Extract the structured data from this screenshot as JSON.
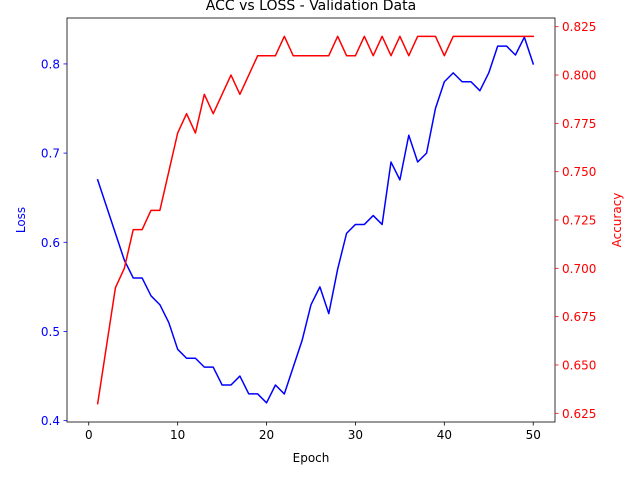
{
  "chart_data": {
    "type": "line",
    "title": "ACC vs LOSS - Validation Data",
    "xlabel": "Epoch",
    "ylabel_left": "Loss",
    "ylabel_right": "Accuracy",
    "xlim": [
      -2.45,
      52.45
    ],
    "ylim_left": [
      0.3985,
      0.8515
    ],
    "ylim_right": [
      0.6205,
      0.8295
    ],
    "x_ticks": [
      0,
      10,
      20,
      30,
      40,
      50
    ],
    "y_left_ticks": [
      0.4,
      0.5,
      0.6,
      0.7,
      0.8
    ],
    "y_right_ticks": [
      0.625,
      0.65,
      0.675,
      0.7,
      0.725,
      0.75,
      0.775,
      0.8,
      0.825
    ],
    "grid": false,
    "x": [
      1,
      2,
      3,
      4,
      5,
      6,
      7,
      8,
      9,
      10,
      11,
      12,
      13,
      14,
      15,
      16,
      17,
      18,
      19,
      20,
      21,
      22,
      23,
      24,
      25,
      26,
      27,
      28,
      29,
      30,
      31,
      32,
      33,
      34,
      35,
      36,
      37,
      38,
      39,
      40,
      41,
      42,
      43,
      44,
      45,
      46,
      47,
      48,
      49,
      50
    ],
    "series": [
      {
        "axis": "left",
        "color": "#0000ff",
        "values": [
          0.67,
          0.64,
          0.61,
          0.58,
          0.56,
          0.56,
          0.54,
          0.53,
          0.51,
          0.48,
          0.47,
          0.47,
          0.46,
          0.46,
          0.44,
          0.44,
          0.45,
          0.43,
          0.43,
          0.42,
          0.44,
          0.43,
          0.46,
          0.49,
          0.53,
          0.55,
          0.52,
          0.57,
          0.61,
          0.62,
          0.62,
          0.63,
          0.62,
          0.69,
          0.67,
          0.72,
          0.69,
          0.7,
          0.75,
          0.78,
          0.79,
          0.78,
          0.78,
          0.77,
          0.79,
          0.82,
          0.82,
          0.81,
          0.83,
          0.8
        ]
      },
      {
        "axis": "right",
        "color": "#ff0000",
        "values": [
          0.63,
          0.66,
          0.69,
          0.7,
          0.72,
          0.72,
          0.73,
          0.73,
          0.75,
          0.77,
          0.78,
          0.77,
          0.79,
          0.78,
          0.79,
          0.8,
          0.79,
          0.8,
          0.81,
          0.81,
          0.81,
          0.82,
          0.81,
          0.81,
          0.81,
          0.81,
          0.81,
          0.82,
          0.81,
          0.81,
          0.82,
          0.81,
          0.82,
          0.81,
          0.82,
          0.81,
          0.82,
          0.82,
          0.82,
          0.81,
          0.82,
          0.82,
          0.82,
          0.82,
          0.82,
          0.82,
          0.82,
          0.82,
          0.82,
          0.82
        ]
      }
    ]
  }
}
